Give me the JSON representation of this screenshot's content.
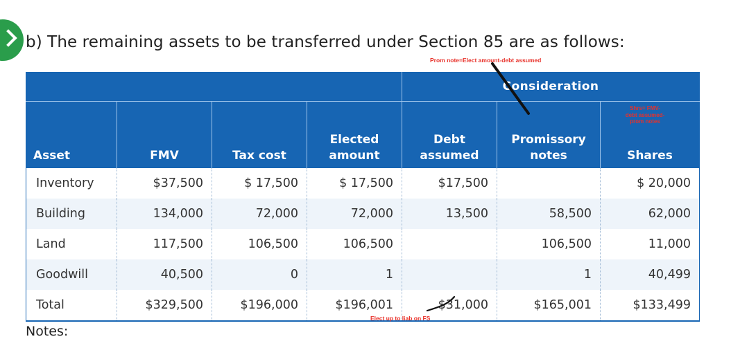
{
  "heading": "b) The remaining assets to be transferred under Section 85 are as follows:",
  "annotations": {
    "prom_note": "Prom note=Elect amount-debt assumed",
    "shares_note_lines": [
      "Shrs= FMV-",
      "debt assumed-",
      "prom notes"
    ],
    "elect_note": "Elect up to liab on FS"
  },
  "table": {
    "group_header": "Consideration",
    "columns": [
      {
        "line1": "",
        "line2": "Asset"
      },
      {
        "line1": "",
        "line2": "FMV"
      },
      {
        "line1": "",
        "line2": "Tax cost"
      },
      {
        "line1": "Elected",
        "line2": "amount"
      },
      {
        "line1": "Debt",
        "line2": "assumed"
      },
      {
        "line1": "Promissory",
        "line2": "notes"
      },
      {
        "line1": "",
        "line2": "Shares"
      }
    ],
    "rows": [
      [
        "Inventory",
        "$37,500",
        "$ 17,500",
        "$ 17,500",
        "$17,500",
        "",
        "$ 20,000"
      ],
      [
        "Building",
        "134,000",
        "72,000",
        "72,000",
        "13,500",
        "58,500",
        "62,000"
      ],
      [
        "Land",
        "117,500",
        "106,500",
        "106,500",
        "",
        "106,500",
        "11,000"
      ],
      [
        "Goodwill",
        "40,500",
        "0",
        "1",
        "",
        "1",
        "40,499"
      ],
      [
        "Total",
        "$329,500",
        "$196,000",
        "$196,001",
        "$31,000",
        "$165,001",
        "$133,499"
      ]
    ]
  },
  "notes_label": "Notes:",
  "colors": {
    "header_bg": "#1765b3",
    "row_shade": "#eef4fa",
    "annotation_red": "#e8312a",
    "badge_green": "#2a9d4b"
  }
}
